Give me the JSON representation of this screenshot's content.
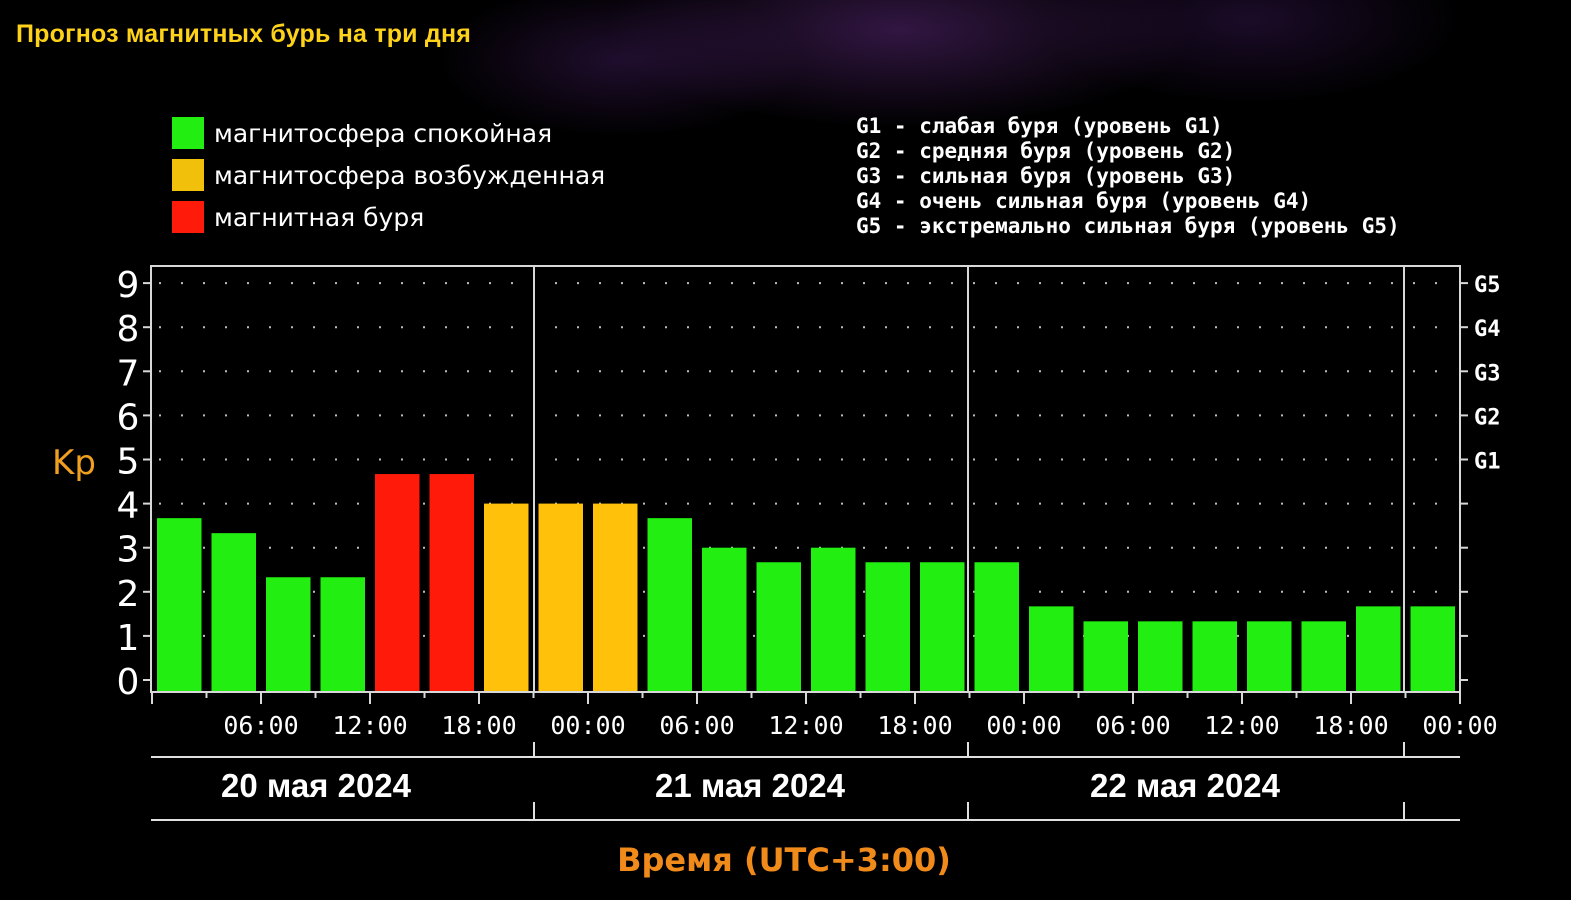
{
  "title": "Прогноз магнитных бурь на три дня",
  "legend": {
    "items": [
      {
        "label": "магнитосфера спокойная",
        "color": "#22ee11"
      },
      {
        "label": "магнитосфера возбужденная",
        "color": "#f0c00a"
      },
      {
        "label": "магнитная буря",
        "color": "#ff1a0a"
      }
    ],
    "levels": [
      "G1 - слабая буря (уровень G1)",
      "G2 - средняя буря (уровень G2)",
      "G3 - сильная буря (уровень G3)",
      "G4 - очень сильная буря (уровень G4)",
      "G5 - экстремально сильная буря (уровень G5)"
    ]
  },
  "chart_data": {
    "type": "bar",
    "ylabel": "Kp",
    "xlabel": "Время (UTC+3:00)",
    "ylim": [
      0,
      9
    ],
    "y_ticks": [
      "0",
      "1",
      "2",
      "3",
      "4",
      "5",
      "6",
      "7",
      "8",
      "9"
    ],
    "right_ticks": [
      {
        "kp": 5,
        "label": "G1"
      },
      {
        "kp": 6,
        "label": "G2"
      },
      {
        "kp": 7,
        "label": "G3"
      },
      {
        "kp": 8,
        "label": "G4"
      },
      {
        "kp": 9,
        "label": "G5"
      }
    ],
    "x_tick_labels": [
      "06:00",
      "12:00",
      "18:00",
      "00:00",
      "06:00",
      "12:00",
      "18:00",
      "00:00",
      "06:00",
      "12:00",
      "18:00",
      "00:00"
    ],
    "days": [
      "20 мая 2024",
      "21 мая 2024",
      "22 мая 2024"
    ],
    "colors": {
      "quiet": "#22ee11",
      "active": "#ffc10a",
      "storm": "#ff1a0a"
    },
    "values": [
      3.67,
      3.33,
      2.33,
      2.33,
      4.67,
      4.67,
      4.0,
      4.0,
      4.0,
      3.67,
      3.0,
      2.67,
      3.0,
      2.67,
      2.67,
      2.67,
      1.67,
      1.33,
      1.33,
      1.33,
      1.33,
      1.33,
      1.67,
      1.67
    ],
    "status": [
      "quiet",
      "quiet",
      "quiet",
      "quiet",
      "storm",
      "storm",
      "active",
      "active",
      "active",
      "quiet",
      "quiet",
      "quiet",
      "quiet",
      "quiet",
      "quiet",
      "quiet",
      "quiet",
      "quiet",
      "quiet",
      "quiet",
      "quiet",
      "quiet",
      "quiet",
      "quiet"
    ],
    "grid": "dotted",
    "legend_position": "top"
  }
}
